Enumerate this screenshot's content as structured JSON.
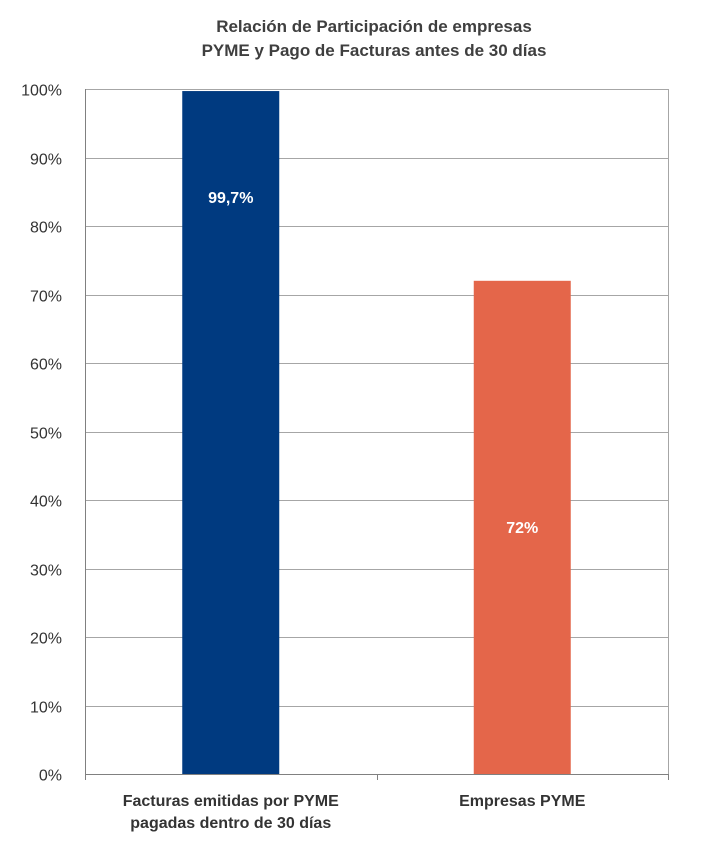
{
  "chart_data": {
    "type": "bar",
    "title_lines": [
      "Relación de Participación de empresas",
      "PYME y Pago de Facturas antes de 30 días"
    ],
    "categories": [
      [
        "Facturas emitidas por PYME",
        "pagadas dentro de 30 días"
      ],
      [
        "Empresas PYME"
      ]
    ],
    "values": [
      99.7,
      72
    ],
    "data_labels": [
      "99,7%",
      "72%"
    ],
    "colors": [
      "#003a80",
      "#e4664a"
    ],
    "ylim": [
      0,
      100
    ],
    "yticks": [
      0,
      10,
      20,
      30,
      40,
      50,
      60,
      70,
      80,
      90,
      100
    ],
    "ytick_labels": [
      "0%",
      "10%",
      "20%",
      "30%",
      "40%",
      "50%",
      "60%",
      "70%",
      "80%",
      "90%",
      "100%"
    ],
    "grid": true,
    "legend": "none",
    "xlabel": "",
    "ylabel": ""
  }
}
